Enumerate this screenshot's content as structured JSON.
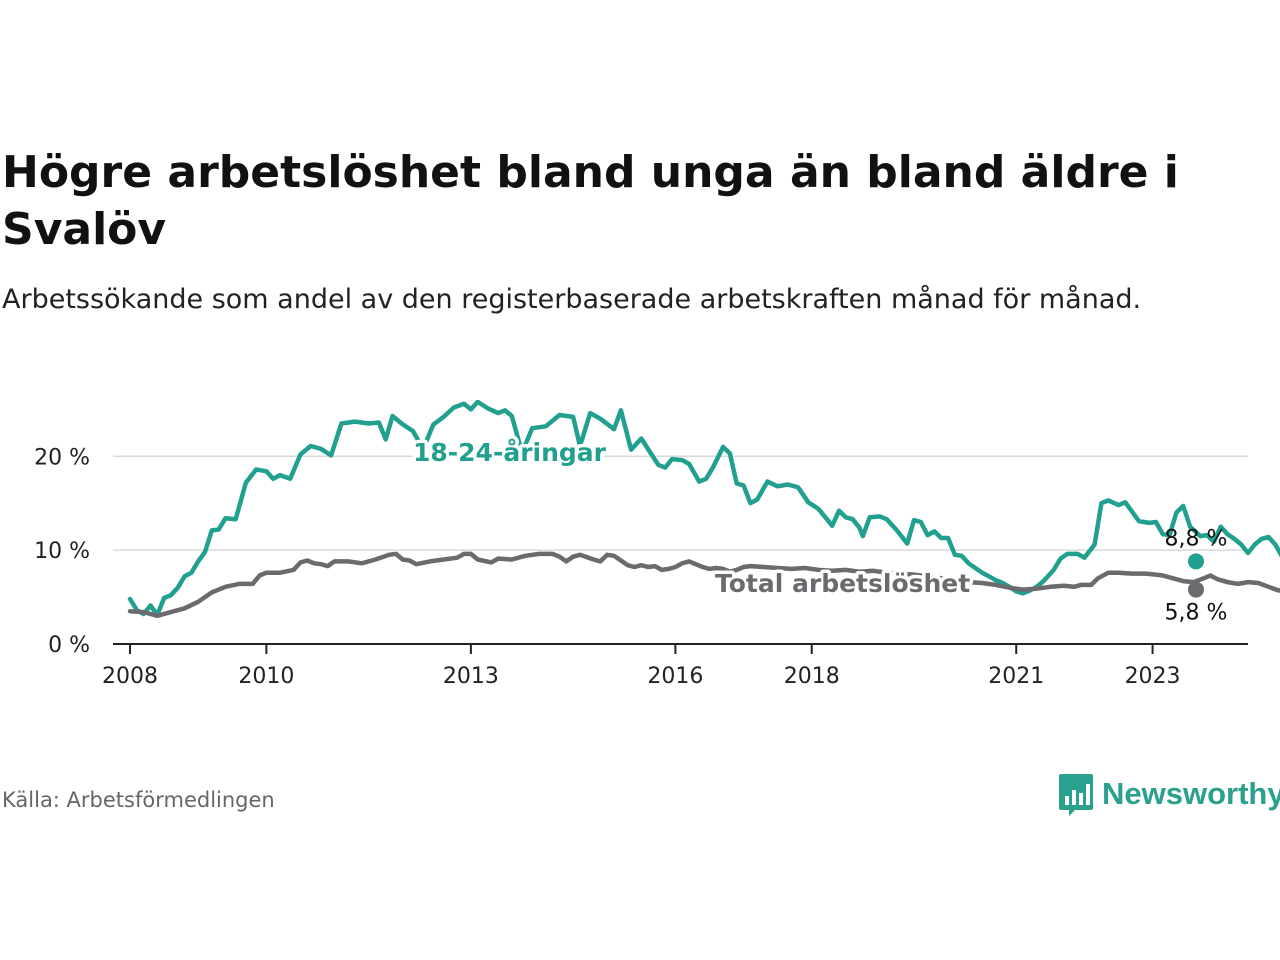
{
  "title": "Högre arbetslöshet bland unga än bland äldre i Svalöv",
  "subtitle": "Arbetssökande som andel av den registerbaserade arbetskraften månad för månad.",
  "source": "Källa: Arbetsförmedlingen",
  "logo": {
    "text": "Newsworthy",
    "icon": "bar-chart-speech-bubble-icon",
    "color": "#2aa08f"
  },
  "chart_data": {
    "type": "line",
    "title": "Högre arbetslöshet bland unga än bland äldre i Svalöv",
    "xlabel": "",
    "ylabel": "",
    "ylim": [
      0,
      26
    ],
    "xlim": [
      2007.75,
      2024.4
    ],
    "yticks": [
      0,
      10,
      20
    ],
    "ytick_labels": [
      "0 %",
      "10 %",
      "20 %"
    ],
    "xticks": [
      2008,
      2010,
      2013,
      2016,
      2018,
      2021,
      2023
    ],
    "xtick_labels": [
      "2008",
      "2010",
      "2013",
      "2016",
      "2018",
      "2021",
      "2023"
    ],
    "grid": true,
    "series": [
      {
        "name": "18-24-åringar",
        "label": "18-24-åringar",
        "color": "#21a08f",
        "end_label": "8,8 %",
        "points": [
          [
            2008.0,
            4.8
          ],
          [
            2008.1,
            3.6
          ],
          [
            2008.2,
            3.2
          ],
          [
            2008.3,
            4.1
          ],
          [
            2008.4,
            3.1
          ],
          [
            2008.5,
            4.9
          ],
          [
            2008.6,
            5.2
          ],
          [
            2008.7,
            6.0
          ],
          [
            2008.8,
            7.2
          ],
          [
            2008.9,
            7.6
          ],
          [
            2009.0,
            8.8
          ],
          [
            2009.1,
            9.8
          ],
          [
            2009.2,
            12.1
          ],
          [
            2009.3,
            12.2
          ],
          [
            2009.4,
            13.4
          ],
          [
            2009.55,
            13.3
          ],
          [
            2009.7,
            17.2
          ],
          [
            2009.85,
            18.6
          ],
          [
            2010.0,
            18.4
          ],
          [
            2010.1,
            17.6
          ],
          [
            2010.2,
            18.0
          ],
          [
            2010.35,
            17.6
          ],
          [
            2010.5,
            20.2
          ],
          [
            2010.65,
            21.1
          ],
          [
            2010.8,
            20.8
          ],
          [
            2010.95,
            20.1
          ],
          [
            2011.1,
            23.5
          ],
          [
            2011.3,
            23.7
          ],
          [
            2011.5,
            23.5
          ],
          [
            2011.65,
            23.6
          ],
          [
            2011.75,
            21.8
          ],
          [
            2011.85,
            24.3
          ],
          [
            2012.0,
            23.4
          ],
          [
            2012.15,
            22.7
          ],
          [
            2012.3,
            20.8
          ],
          [
            2012.45,
            23.4
          ],
          [
            2012.6,
            24.2
          ],
          [
            2012.75,
            25.2
          ],
          [
            2012.9,
            25.6
          ],
          [
            2013.0,
            25.0
          ],
          [
            2013.1,
            25.8
          ],
          [
            2013.25,
            25.1
          ],
          [
            2013.4,
            24.6
          ],
          [
            2013.5,
            24.9
          ],
          [
            2013.6,
            24.3
          ],
          [
            2013.75,
            20.4
          ],
          [
            2013.9,
            23.0
          ],
          [
            2014.1,
            23.2
          ],
          [
            2014.3,
            24.4
          ],
          [
            2014.5,
            24.2
          ],
          [
            2014.6,
            21.1
          ],
          [
            2014.75,
            24.6
          ],
          [
            2014.9,
            24.0
          ],
          [
            2015.1,
            22.9
          ],
          [
            2015.2,
            24.9
          ],
          [
            2015.35,
            20.7
          ],
          [
            2015.5,
            21.9
          ],
          [
            2015.65,
            20.2
          ],
          [
            2015.75,
            19.1
          ],
          [
            2015.85,
            18.8
          ],
          [
            2015.95,
            19.7
          ],
          [
            2016.1,
            19.6
          ],
          [
            2016.2,
            19.2
          ],
          [
            2016.35,
            17.3
          ],
          [
            2016.45,
            17.6
          ],
          [
            2016.55,
            18.8
          ],
          [
            2016.7,
            21.0
          ],
          [
            2016.8,
            20.3
          ],
          [
            2016.9,
            17.1
          ],
          [
            2017.0,
            16.9
          ],
          [
            2017.1,
            15.0
          ],
          [
            2017.2,
            15.4
          ],
          [
            2017.35,
            17.3
          ],
          [
            2017.5,
            16.8
          ],
          [
            2017.65,
            17.0
          ],
          [
            2017.8,
            16.7
          ],
          [
            2017.95,
            15.1
          ],
          [
            2018.1,
            14.4
          ],
          [
            2018.2,
            13.5
          ],
          [
            2018.3,
            12.6
          ],
          [
            2018.4,
            14.2
          ],
          [
            2018.5,
            13.5
          ],
          [
            2018.6,
            13.3
          ],
          [
            2018.7,
            12.4
          ],
          [
            2018.75,
            11.5
          ],
          [
            2018.85,
            13.5
          ],
          [
            2019.0,
            13.6
          ],
          [
            2019.1,
            13.3
          ],
          [
            2019.25,
            12.1
          ],
          [
            2019.4,
            10.7
          ],
          [
            2019.5,
            13.2
          ],
          [
            2019.6,
            13.0
          ],
          [
            2019.7,
            11.6
          ],
          [
            2019.8,
            12.0
          ],
          [
            2019.9,
            11.3
          ],
          [
            2020.0,
            11.3
          ],
          [
            2020.1,
            9.5
          ],
          [
            2020.2,
            9.4
          ],
          [
            2020.3,
            8.6
          ],
          [
            2020.4,
            8.1
          ],
          [
            2020.5,
            7.6
          ],
          [
            2020.6,
            7.2
          ],
          [
            2020.7,
            6.8
          ],
          [
            2020.8,
            6.5
          ],
          [
            2020.9,
            6.1
          ],
          [
            2021.0,
            5.6
          ],
          [
            2021.1,
            5.4
          ],
          [
            2021.2,
            5.7
          ],
          [
            2021.3,
            6.1
          ],
          [
            2021.4,
            6.7
          ],
          [
            2021.55,
            7.9
          ],
          [
            2021.65,
            9.1
          ],
          [
            2021.75,
            9.6
          ],
          [
            2021.9,
            9.6
          ],
          [
            2022.0,
            9.2
          ],
          [
            2022.15,
            10.6
          ],
          [
            2022.25,
            15.0
          ],
          [
            2022.35,
            15.3
          ],
          [
            2022.5,
            14.8
          ],
          [
            2022.6,
            15.1
          ],
          [
            2022.7,
            14.1
          ],
          [
            2022.8,
            13.1
          ],
          [
            2022.95,
            12.9
          ],
          [
            2023.05,
            13.0
          ],
          [
            2023.15,
            11.7
          ],
          [
            2023.25,
            11.6
          ],
          [
            2023.35,
            14.0
          ],
          [
            2023.45,
            14.7
          ],
          [
            2023.55,
            12.5
          ],
          [
            2023.7,
            11.5
          ],
          [
            2023.8,
            11.6
          ],
          [
            2023.9,
            10.9
          ],
          [
            2024.0,
            12.5
          ],
          [
            2024.1,
            11.7
          ],
          [
            2024.2,
            11.2
          ],
          [
            2024.3,
            10.6
          ],
          [
            2024.4,
            9.7
          ],
          [
            2024.5,
            10.6
          ],
          [
            2024.6,
            11.2
          ],
          [
            2024.7,
            11.4
          ],
          [
            2024.8,
            10.6
          ],
          [
            2024.9,
            9.3
          ],
          [
            2025.1,
            8.8
          ]
        ]
      },
      {
        "name": "Total arbetslöshet",
        "label": "Total arbetslöshet",
        "color": "#6b6b6f",
        "end_label": "5,8 %",
        "points": [
          [
            2008.0,
            3.5
          ],
          [
            2008.2,
            3.4
          ],
          [
            2008.4,
            3.0
          ],
          [
            2008.6,
            3.4
          ],
          [
            2008.8,
            3.8
          ],
          [
            2009.0,
            4.5
          ],
          [
            2009.2,
            5.5
          ],
          [
            2009.4,
            6.1
          ],
          [
            2009.6,
            6.4
          ],
          [
            2009.8,
            6.4
          ],
          [
            2009.9,
            7.3
          ],
          [
            2010.0,
            7.6
          ],
          [
            2010.2,
            7.6
          ],
          [
            2010.4,
            7.9
          ],
          [
            2010.5,
            8.7
          ],
          [
            2010.6,
            8.9
          ],
          [
            2010.7,
            8.6
          ],
          [
            2010.8,
            8.5
          ],
          [
            2010.9,
            8.3
          ],
          [
            2011.0,
            8.8
          ],
          [
            2011.2,
            8.8
          ],
          [
            2011.4,
            8.6
          ],
          [
            2011.6,
            9.0
          ],
          [
            2011.8,
            9.5
          ],
          [
            2011.9,
            9.6
          ],
          [
            2012.0,
            9.0
          ],
          [
            2012.1,
            8.9
          ],
          [
            2012.2,
            8.5
          ],
          [
            2012.4,
            8.8
          ],
          [
            2012.6,
            9.0
          ],
          [
            2012.8,
            9.2
          ],
          [
            2012.9,
            9.6
          ],
          [
            2013.0,
            9.6
          ],
          [
            2013.1,
            9.0
          ],
          [
            2013.3,
            8.7
          ],
          [
            2013.4,
            9.1
          ],
          [
            2013.6,
            9.0
          ],
          [
            2013.8,
            9.4
          ],
          [
            2014.0,
            9.6
          ],
          [
            2014.2,
            9.6
          ],
          [
            2014.3,
            9.3
          ],
          [
            2014.4,
            8.8
          ],
          [
            2014.5,
            9.3
          ],
          [
            2014.6,
            9.5
          ],
          [
            2014.8,
            9.0
          ],
          [
            2014.9,
            8.8
          ],
          [
            2015.0,
            9.5
          ],
          [
            2015.1,
            9.4
          ],
          [
            2015.2,
            8.9
          ],
          [
            2015.3,
            8.4
          ],
          [
            2015.4,
            8.2
          ],
          [
            2015.5,
            8.4
          ],
          [
            2015.6,
            8.2
          ],
          [
            2015.7,
            8.3
          ],
          [
            2015.8,
            7.9
          ],
          [
            2015.9,
            8.0
          ],
          [
            2016.0,
            8.2
          ],
          [
            2016.1,
            8.6
          ],
          [
            2016.2,
            8.8
          ],
          [
            2016.3,
            8.5
          ],
          [
            2016.4,
            8.2
          ],
          [
            2016.5,
            8.0
          ],
          [
            2016.6,
            8.1
          ],
          [
            2016.7,
            8.0
          ],
          [
            2016.8,
            7.7
          ],
          [
            2016.9,
            7.9
          ],
          [
            2017.0,
            8.2
          ],
          [
            2017.1,
            8.3
          ],
          [
            2017.3,
            8.2
          ],
          [
            2017.5,
            8.1
          ],
          [
            2017.7,
            8.0
          ],
          [
            2017.9,
            8.1
          ],
          [
            2018.1,
            7.9
          ],
          [
            2018.3,
            7.8
          ],
          [
            2018.5,
            7.9
          ],
          [
            2018.7,
            7.7
          ],
          [
            2018.9,
            7.8
          ],
          [
            2019.1,
            7.6
          ],
          [
            2019.3,
            7.5
          ],
          [
            2019.5,
            7.4
          ],
          [
            2019.7,
            7.2
          ],
          [
            2019.9,
            7.0
          ],
          [
            2020.1,
            6.7
          ],
          [
            2020.3,
            6.6
          ],
          [
            2020.5,
            6.5
          ],
          [
            2020.7,
            6.3
          ],
          [
            2020.9,
            6.0
          ],
          [
            2021.1,
            5.8
          ],
          [
            2021.3,
            5.9
          ],
          [
            2021.5,
            6.1
          ],
          [
            2021.7,
            6.2
          ],
          [
            2021.85,
            6.1
          ],
          [
            2021.95,
            6.3
          ],
          [
            2022.1,
            6.3
          ],
          [
            2022.2,
            7.0
          ],
          [
            2022.35,
            7.6
          ],
          [
            2022.5,
            7.6
          ],
          [
            2022.7,
            7.5
          ],
          [
            2022.9,
            7.5
          ],
          [
            2023.05,
            7.4
          ],
          [
            2023.15,
            7.3
          ],
          [
            2023.3,
            7.0
          ],
          [
            2023.45,
            6.7
          ],
          [
            2023.6,
            6.6
          ],
          [
            2023.75,
            7.0
          ],
          [
            2023.85,
            7.3
          ],
          [
            2023.95,
            6.9
          ],
          [
            2024.1,
            6.6
          ],
          [
            2024.25,
            6.4
          ],
          [
            2024.4,
            6.6
          ],
          [
            2024.55,
            6.5
          ],
          [
            2024.7,
            6.1
          ],
          [
            2024.85,
            5.7
          ],
          [
            2024.95,
            5.8
          ],
          [
            2025.1,
            5.8
          ]
        ]
      }
    ]
  }
}
